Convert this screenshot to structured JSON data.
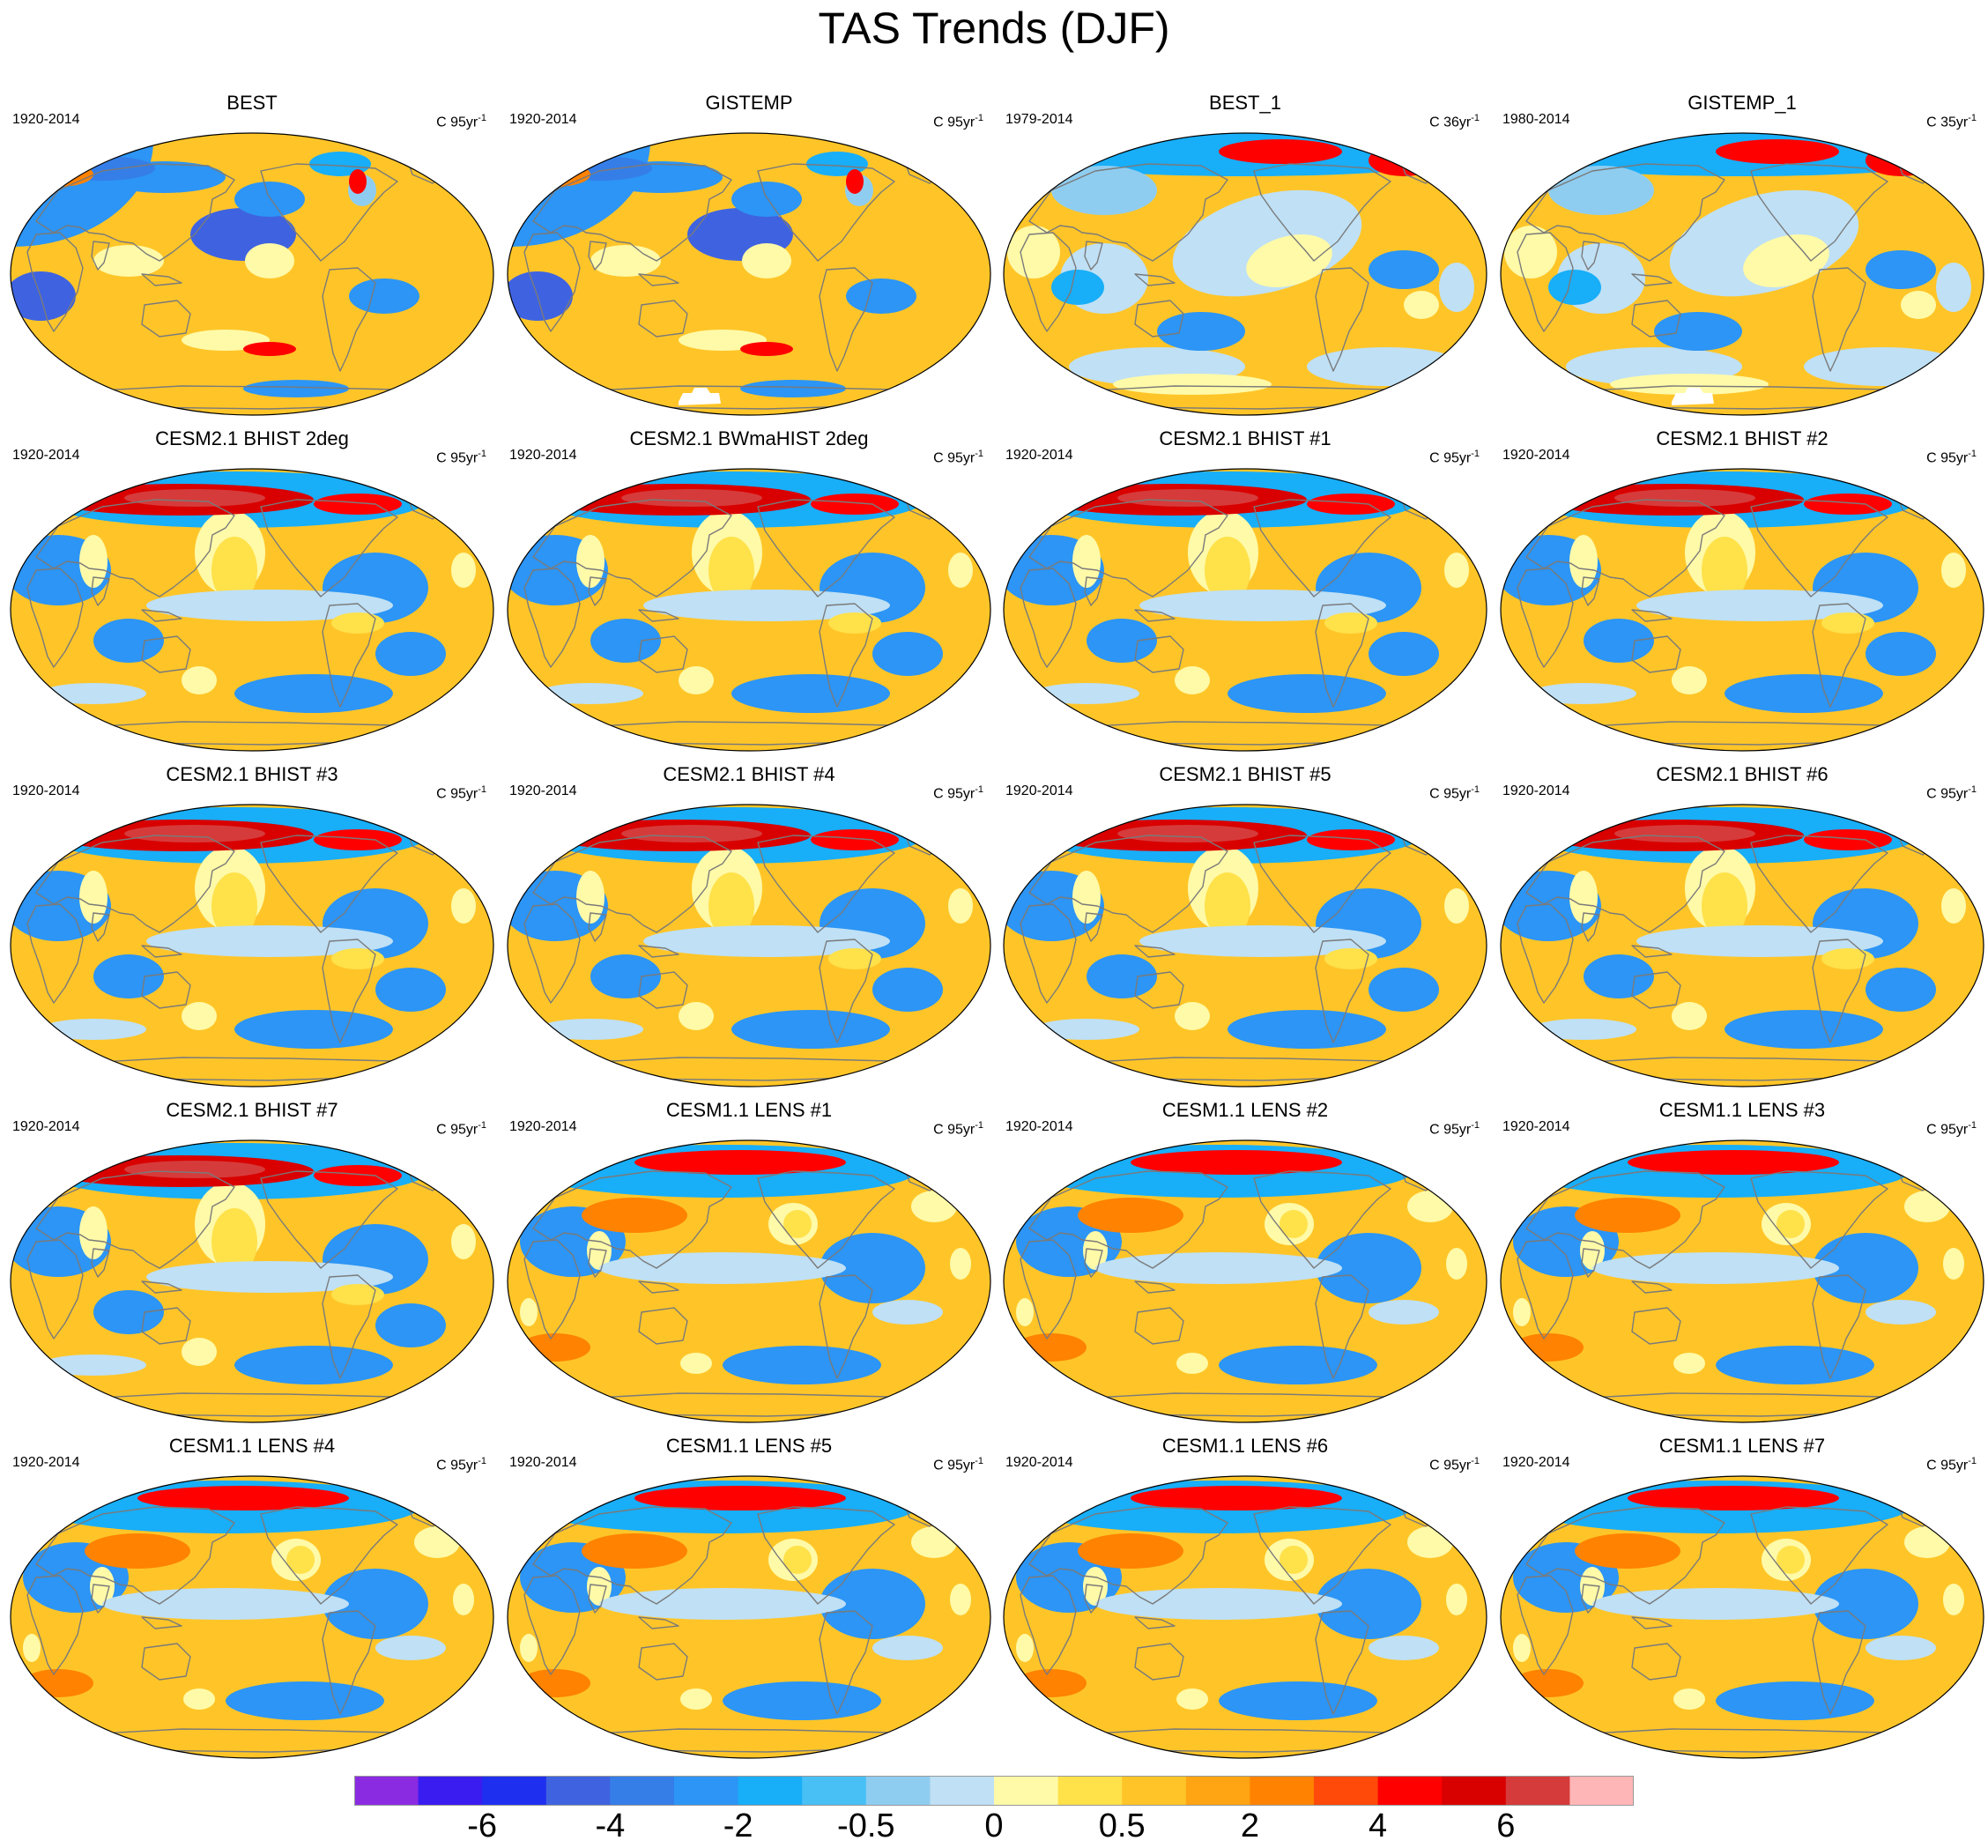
{
  "figure": {
    "title": "TAS Trends (DJF)"
  },
  "panels": [
    {
      "name": "BEST",
      "period": "1920-2014",
      "units": "C 95yr",
      "units_exp": "-1",
      "pattern": "obs_long",
      "gap": false
    },
    {
      "name": "GISTEMP",
      "period": "1920-2014",
      "units": "C 95yr",
      "units_exp": "-1",
      "pattern": "obs_long",
      "gap": true
    },
    {
      "name": "BEST_1",
      "period": "1979-2014",
      "units": "C 36yr",
      "units_exp": "-1",
      "pattern": "obs_short",
      "gap": false
    },
    {
      "name": "GISTEMP_1",
      "period": "1980-2014",
      "units": "C 35yr",
      "units_exp": "-1",
      "pattern": "obs_short",
      "gap": true
    },
    {
      "name": "CESM2.1 BHIST 2deg",
      "period": "1920-2014",
      "units": "C 95yr",
      "units_exp": "-1",
      "pattern": "model",
      "gap": false
    },
    {
      "name": "CESM2.1 BWmaHIST 2deg",
      "period": "1920-2014",
      "units": "C 95yr",
      "units_exp": "-1",
      "pattern": "model",
      "gap": false
    },
    {
      "name": "CESM2.1 BHIST #1",
      "period": "1920-2014",
      "units": "C 95yr",
      "units_exp": "-1",
      "pattern": "model",
      "gap": false
    },
    {
      "name": "CESM2.1 BHIST #2",
      "period": "1920-2014",
      "units": "C 95yr",
      "units_exp": "-1",
      "pattern": "model",
      "gap": false
    },
    {
      "name": "CESM2.1 BHIST #3",
      "period": "1920-2014",
      "units": "C 95yr",
      "units_exp": "-1",
      "pattern": "model",
      "gap": false
    },
    {
      "name": "CESM2.1 BHIST #4",
      "period": "1920-2014",
      "units": "C 95yr",
      "units_exp": "-1",
      "pattern": "model",
      "gap": false
    },
    {
      "name": "CESM2.1 BHIST #5",
      "period": "1920-2014",
      "units": "C 95yr",
      "units_exp": "-1",
      "pattern": "model",
      "gap": false
    },
    {
      "name": "CESM2.1 BHIST #6",
      "period": "1920-2014",
      "units": "C 95yr",
      "units_exp": "-1",
      "pattern": "model",
      "gap": false
    },
    {
      "name": "CESM2.1 BHIST #7",
      "period": "1920-2014",
      "units": "C 95yr",
      "units_exp": "-1",
      "pattern": "model",
      "gap": false
    },
    {
      "name": "CESM1.1 LENS #1",
      "period": "1920-2014",
      "units": "C 95yr",
      "units_exp": "-1",
      "pattern": "lens",
      "gap": false
    },
    {
      "name": "CESM1.1 LENS #2",
      "period": "1920-2014",
      "units": "C 95yr",
      "units_exp": "-1",
      "pattern": "lens",
      "gap": false
    },
    {
      "name": "CESM1.1 LENS #3",
      "period": "1920-2014",
      "units": "C 95yr",
      "units_exp": "-1",
      "pattern": "lens",
      "gap": false
    },
    {
      "name": "CESM1.1 LENS #4",
      "period": "1920-2014",
      "units": "C 95yr",
      "units_exp": "-1",
      "pattern": "lens",
      "gap": false
    },
    {
      "name": "CESM1.1 LENS #5",
      "period": "1920-2014",
      "units": "C 95yr",
      "units_exp": "-1",
      "pattern": "lens",
      "gap": false
    },
    {
      "name": "CESM1.1 LENS #6",
      "period": "1920-2014",
      "units": "C 95yr",
      "units_exp": "-1",
      "pattern": "lens",
      "gap": false
    },
    {
      "name": "CESM1.1 LENS #7",
      "period": "1920-2014",
      "units": "C 95yr",
      "units_exp": "-1",
      "pattern": "lens",
      "gap": false
    }
  ],
  "colorbar": {
    "colors": [
      "#8a2be2",
      "#3b1cf0",
      "#1f2ff0",
      "#3f63e0",
      "#357ee8",
      "#2c95f5",
      "#18aef8",
      "#48c0f5",
      "#8fcdf0",
      "#bfe0f5",
      "#fffaa8",
      "#ffe14a",
      "#ffc528",
      "#ffa412",
      "#ff8200",
      "#ff4a0a",
      "#ff0000",
      "#d90000",
      "#d63b3b",
      "#ffb6b6"
    ],
    "labels": [
      {
        "text": "-6",
        "boundary": 2
      },
      {
        "text": "-4",
        "boundary": 4
      },
      {
        "text": "-2",
        "boundary": 6
      },
      {
        "text": "-0.5",
        "boundary": 8
      },
      {
        "text": "0",
        "boundary": 10
      },
      {
        "text": "0.5",
        "boundary": 12
      },
      {
        "text": "2",
        "boundary": 14
      },
      {
        "text": "4",
        "boundary": 16
      },
      {
        "text": "6",
        "boundary": 18
      }
    ]
  }
}
